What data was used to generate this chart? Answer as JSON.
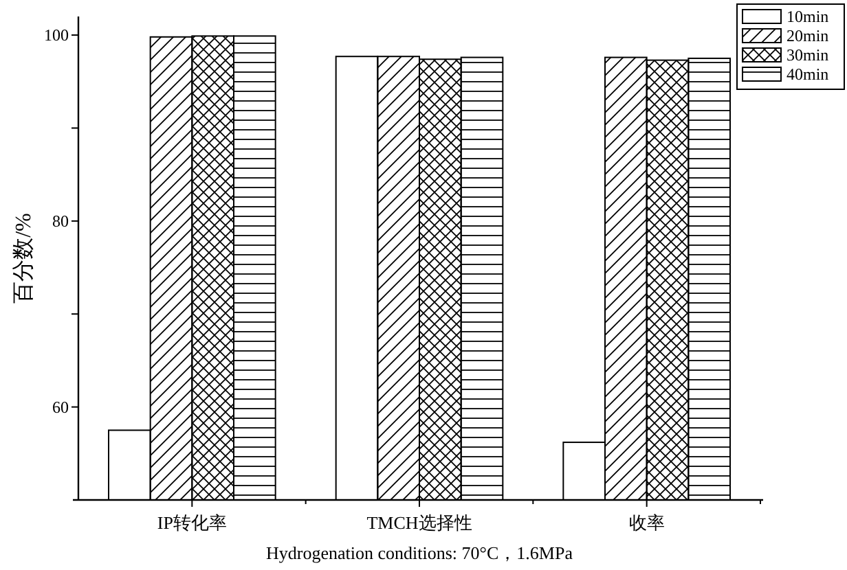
{
  "chart_data": {
    "type": "bar",
    "xlabel": "Hydrogenation conditions: 70°C，1.6MPa",
    "ylabel": "百分数/%",
    "categories": [
      "IP转化率",
      "TMCH选择性",
      "收率"
    ],
    "series": [
      {
        "name": "10min",
        "color": "#ffffff",
        "values": [
          57.5,
          97.7,
          56.2
        ]
      },
      {
        "name": "20min",
        "color": "#000000",
        "values": [
          99.8,
          97.7,
          97.6
        ]
      },
      {
        "name": "30min",
        "color": "#000000",
        "values": [
          99.9,
          97.4,
          97.3
        ]
      },
      {
        "name": "40min",
        "color": "#000000",
        "values": [
          99.9,
          97.6,
          97.5
        ]
      }
    ],
    "ylim": [
      50,
      102
    ],
    "yticks": [
      60,
      {
        "value": 70,
        "label": null
      },
      80,
      {
        "value": 90,
        "label": null
      },
      100
    ],
    "grid": false,
    "legend": "top right"
  }
}
